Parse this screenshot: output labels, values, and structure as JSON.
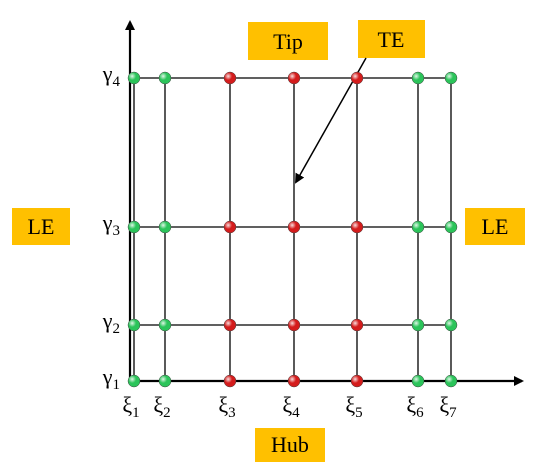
{
  "labels": {
    "tip": "Tip",
    "te": "TE",
    "le_left": "LE",
    "le_right": "LE",
    "hub": "Hub"
  },
  "rows": [
    {
      "symbol": "γ",
      "index": "1"
    },
    {
      "symbol": "γ",
      "index": "2"
    },
    {
      "symbol": "γ",
      "index": "3"
    },
    {
      "symbol": "γ",
      "index": "4"
    }
  ],
  "columns": [
    {
      "symbol": "ξ",
      "index": "1",
      "color": "#2bc45a"
    },
    {
      "symbol": "ξ",
      "index": "2",
      "color": "#2bc45a"
    },
    {
      "symbol": "ξ",
      "index": "3",
      "color": "#d41c1c"
    },
    {
      "symbol": "ξ",
      "index": "4",
      "color": "#d41c1c"
    },
    {
      "symbol": "ξ",
      "index": "5",
      "color": "#d41c1c"
    },
    {
      "symbol": "ξ",
      "index": "6",
      "color": "#2bc45a"
    },
    {
      "symbol": "ξ",
      "index": "7",
      "color": "#2bc45a"
    }
  ]
}
